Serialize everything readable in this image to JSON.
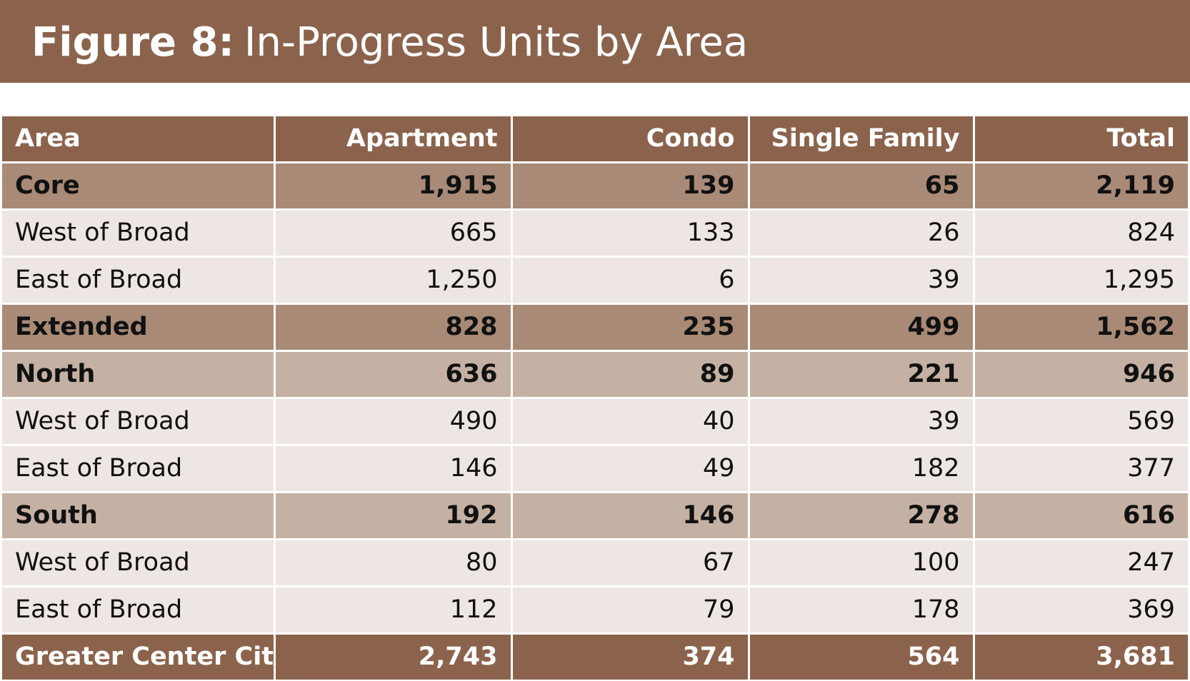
{
  "figure": {
    "label": "Figure 8:",
    "title": "In-Progress Units by Area"
  },
  "table": {
    "headers": [
      "Area",
      "Apartment",
      "Condo",
      "Single Family",
      "Total"
    ],
    "rows": [
      {
        "type": "core",
        "cells": [
          "Core",
          "1,915",
          "139",
          "65",
          "2,119"
        ]
      },
      {
        "type": "sub",
        "cells": [
          "West of Broad",
          "665",
          "133",
          "26",
          "824"
        ]
      },
      {
        "type": "sub",
        "cells": [
          "East of Broad",
          "1,250",
          "6",
          "39",
          "1,295"
        ]
      },
      {
        "type": "core",
        "cells": [
          "Extended",
          "828",
          "235",
          "499",
          "1,562"
        ]
      },
      {
        "type": "region",
        "cells": [
          "North",
          "636",
          "89",
          "221",
          "946"
        ]
      },
      {
        "type": "sub",
        "cells": [
          "West of Broad",
          "490",
          "40",
          "39",
          "569"
        ]
      },
      {
        "type": "sub",
        "cells": [
          "East of Broad",
          "146",
          "49",
          "182",
          "377"
        ]
      },
      {
        "type": "region",
        "cells": [
          "South",
          "192",
          "146",
          "278",
          "616"
        ]
      },
      {
        "type": "sub",
        "cells": [
          "West of Broad",
          "80",
          "67",
          "100",
          "247"
        ]
      },
      {
        "type": "sub",
        "cells": [
          "East of Broad",
          "112",
          "79",
          "178",
          "369"
        ]
      },
      {
        "type": "total",
        "cells": [
          "Greater Center City",
          "2,743",
          "374",
          "564",
          "3,681"
        ]
      }
    ]
  },
  "colors": {
    "header_brown": "#8b634c",
    "core_row": "#a88a76",
    "region_row": "#c5b1a3",
    "sub_row": "#ede6e2"
  }
}
